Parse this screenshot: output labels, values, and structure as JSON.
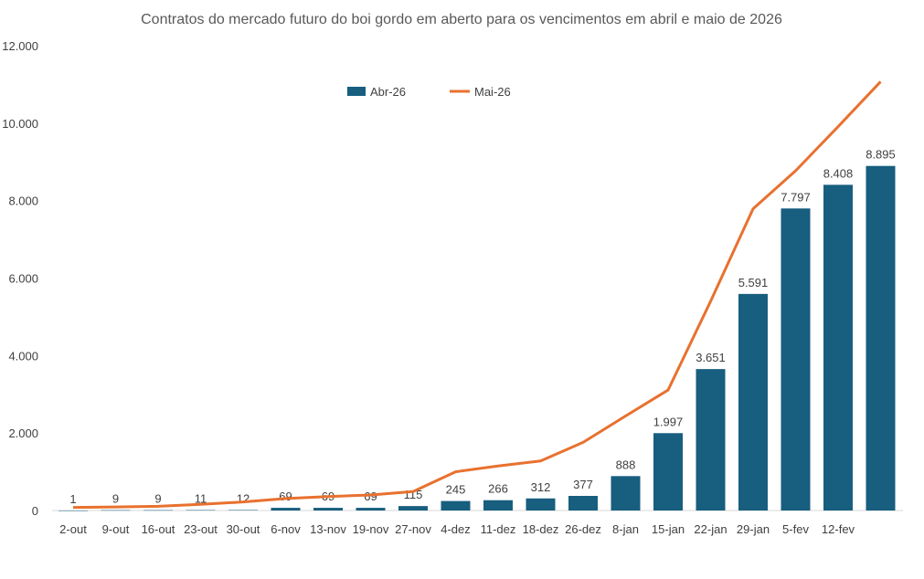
{
  "chart_data": {
    "type": "bar+line",
    "title": "Contratos do mercado futuro do boi gordo em aberto para os vencimentos em abril e maio de 2026",
    "xlabel": "",
    "ylabel": "",
    "ylim": [
      0,
      12000
    ],
    "yticks": [
      0,
      2000,
      4000,
      6000,
      8000,
      10000,
      12000
    ],
    "ytick_labels": [
      "0",
      "2.000",
      "4.000",
      "6.000",
      "8.000",
      "10.000",
      "12.000"
    ],
    "grid": false,
    "legend_position": "top-center",
    "categories": [
      "2-out",
      "9-out",
      "16-out",
      "23-out",
      "30-out",
      "6-nov",
      "13-nov",
      "19-nov",
      "27-nov",
      "4-dez",
      "11-dez",
      "18-dez",
      "26-dez",
      "8-jan",
      "15-jan",
      "22-jan",
      "29-jan",
      "5-fev",
      "12-fev",
      ""
    ],
    "series": [
      {
        "name": "Abr-26",
        "type": "bar",
        "color": "#175E7F",
        "values": [
          1,
          9,
          9,
          11,
          12,
          69,
          69,
          69,
          115,
          245,
          266,
          312,
          377,
          888,
          1997,
          3651,
          5591,
          7797,
          8408,
          8895
        ],
        "labels": [
          "1",
          "9",
          "9",
          "11",
          "12",
          "69",
          "69",
          "69",
          "115",
          "245",
          "266",
          "312",
          "377",
          "888",
          "1.997",
          "3.651",
          "5.591",
          "7.797",
          "8.408",
          "8.895"
        ]
      },
      {
        "name": "Mai-26",
        "type": "line",
        "color": "#E8712F",
        "values": [
          80,
          90,
          110,
          160,
          220,
          310,
          360,
          400,
          490,
          1000,
          1150,
          1280,
          1760,
          2440,
          3110,
          5400,
          7790,
          8770,
          9910,
          11070
        ]
      }
    ]
  }
}
